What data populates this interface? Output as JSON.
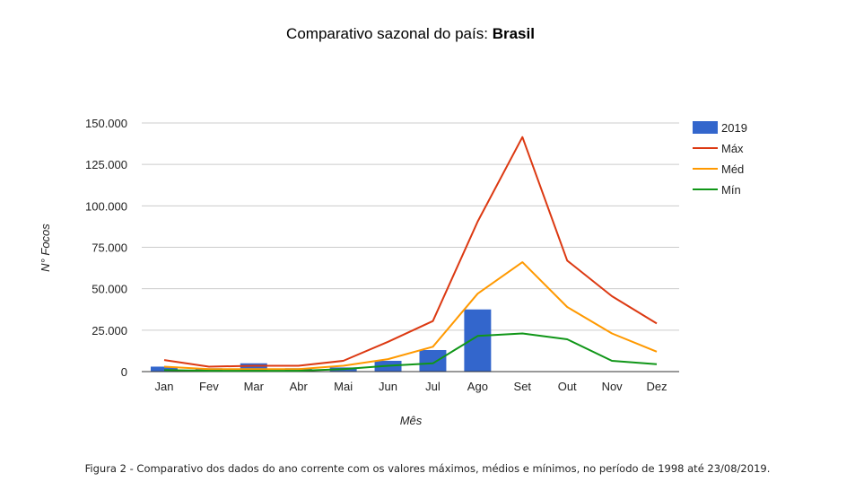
{
  "title_prefix": "Comparativo sazonal do país:",
  "title_country": "Brasil",
  "caption": "Figura 2 - Comparativo dos dados do ano corrente com os valores máximos, médios e mínimos, no período de 1998 até 23/08/2019.",
  "chart_data": {
    "type": "bar",
    "title": "Comparativo sazonal do país: Brasil",
    "xlabel": "Mês",
    "ylabel": "N° Focos",
    "ylim": [
      0,
      150000
    ],
    "yticks": [
      0,
      25000,
      50000,
      75000,
      100000,
      125000,
      150000
    ],
    "ytick_labels": [
      "0",
      "25.000",
      "50.000",
      "75.000",
      "100.000",
      "125.000",
      "150.000"
    ],
    "categories": [
      "Jan",
      "Fev",
      "Mar",
      "Abr",
      "Mai",
      "Jun",
      "Jul",
      "Ago",
      "Set",
      "Out",
      "Nov",
      "Dez"
    ],
    "legend_position": "right",
    "grid": true,
    "series": [
      {
        "name": "2019",
        "type": "bar",
        "color": "#3366cc",
        "values": [
          3000,
          2000,
          5000,
          2000,
          2500,
          6500,
          13000,
          37500,
          0,
          0,
          0,
          0
        ]
      },
      {
        "name": "Máx",
        "type": "line",
        "color": "#dc3912",
        "values": [
          7000,
          3000,
          3500,
          3500,
          6500,
          18000,
          30500,
          90500,
          141500,
          67000,
          45500,
          29000
        ]
      },
      {
        "name": "Méd",
        "type": "line",
        "color": "#ff9900",
        "values": [
          3000,
          1500,
          1500,
          1500,
          3500,
          7500,
          15000,
          47000,
          66000,
          39000,
          23000,
          12000
        ]
      },
      {
        "name": "Mín",
        "type": "line",
        "color": "#109618",
        "values": [
          1000,
          500,
          500,
          500,
          1500,
          3500,
          5000,
          21500,
          23000,
          19500,
          6500,
          4500
        ]
      }
    ]
  }
}
